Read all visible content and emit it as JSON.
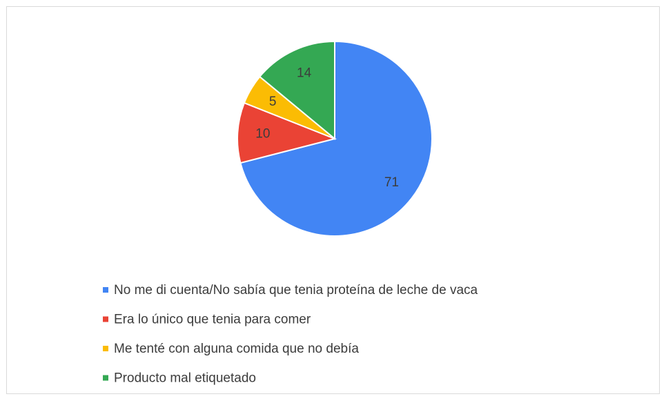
{
  "chart_data": {
    "type": "pie",
    "categories": [
      "No me di cuenta/No sabía que tenia proteína de leche de vaca",
      "Era lo único que tenia para comer",
      "Me tenté con alguna comida que no debía",
      "Producto mal etiquetado"
    ],
    "values": [
      71,
      10,
      5,
      14
    ],
    "colors": [
      "#4285f4",
      "#ea4335",
      "#fbbc04",
      "#34a853"
    ],
    "legend": "bottom"
  }
}
